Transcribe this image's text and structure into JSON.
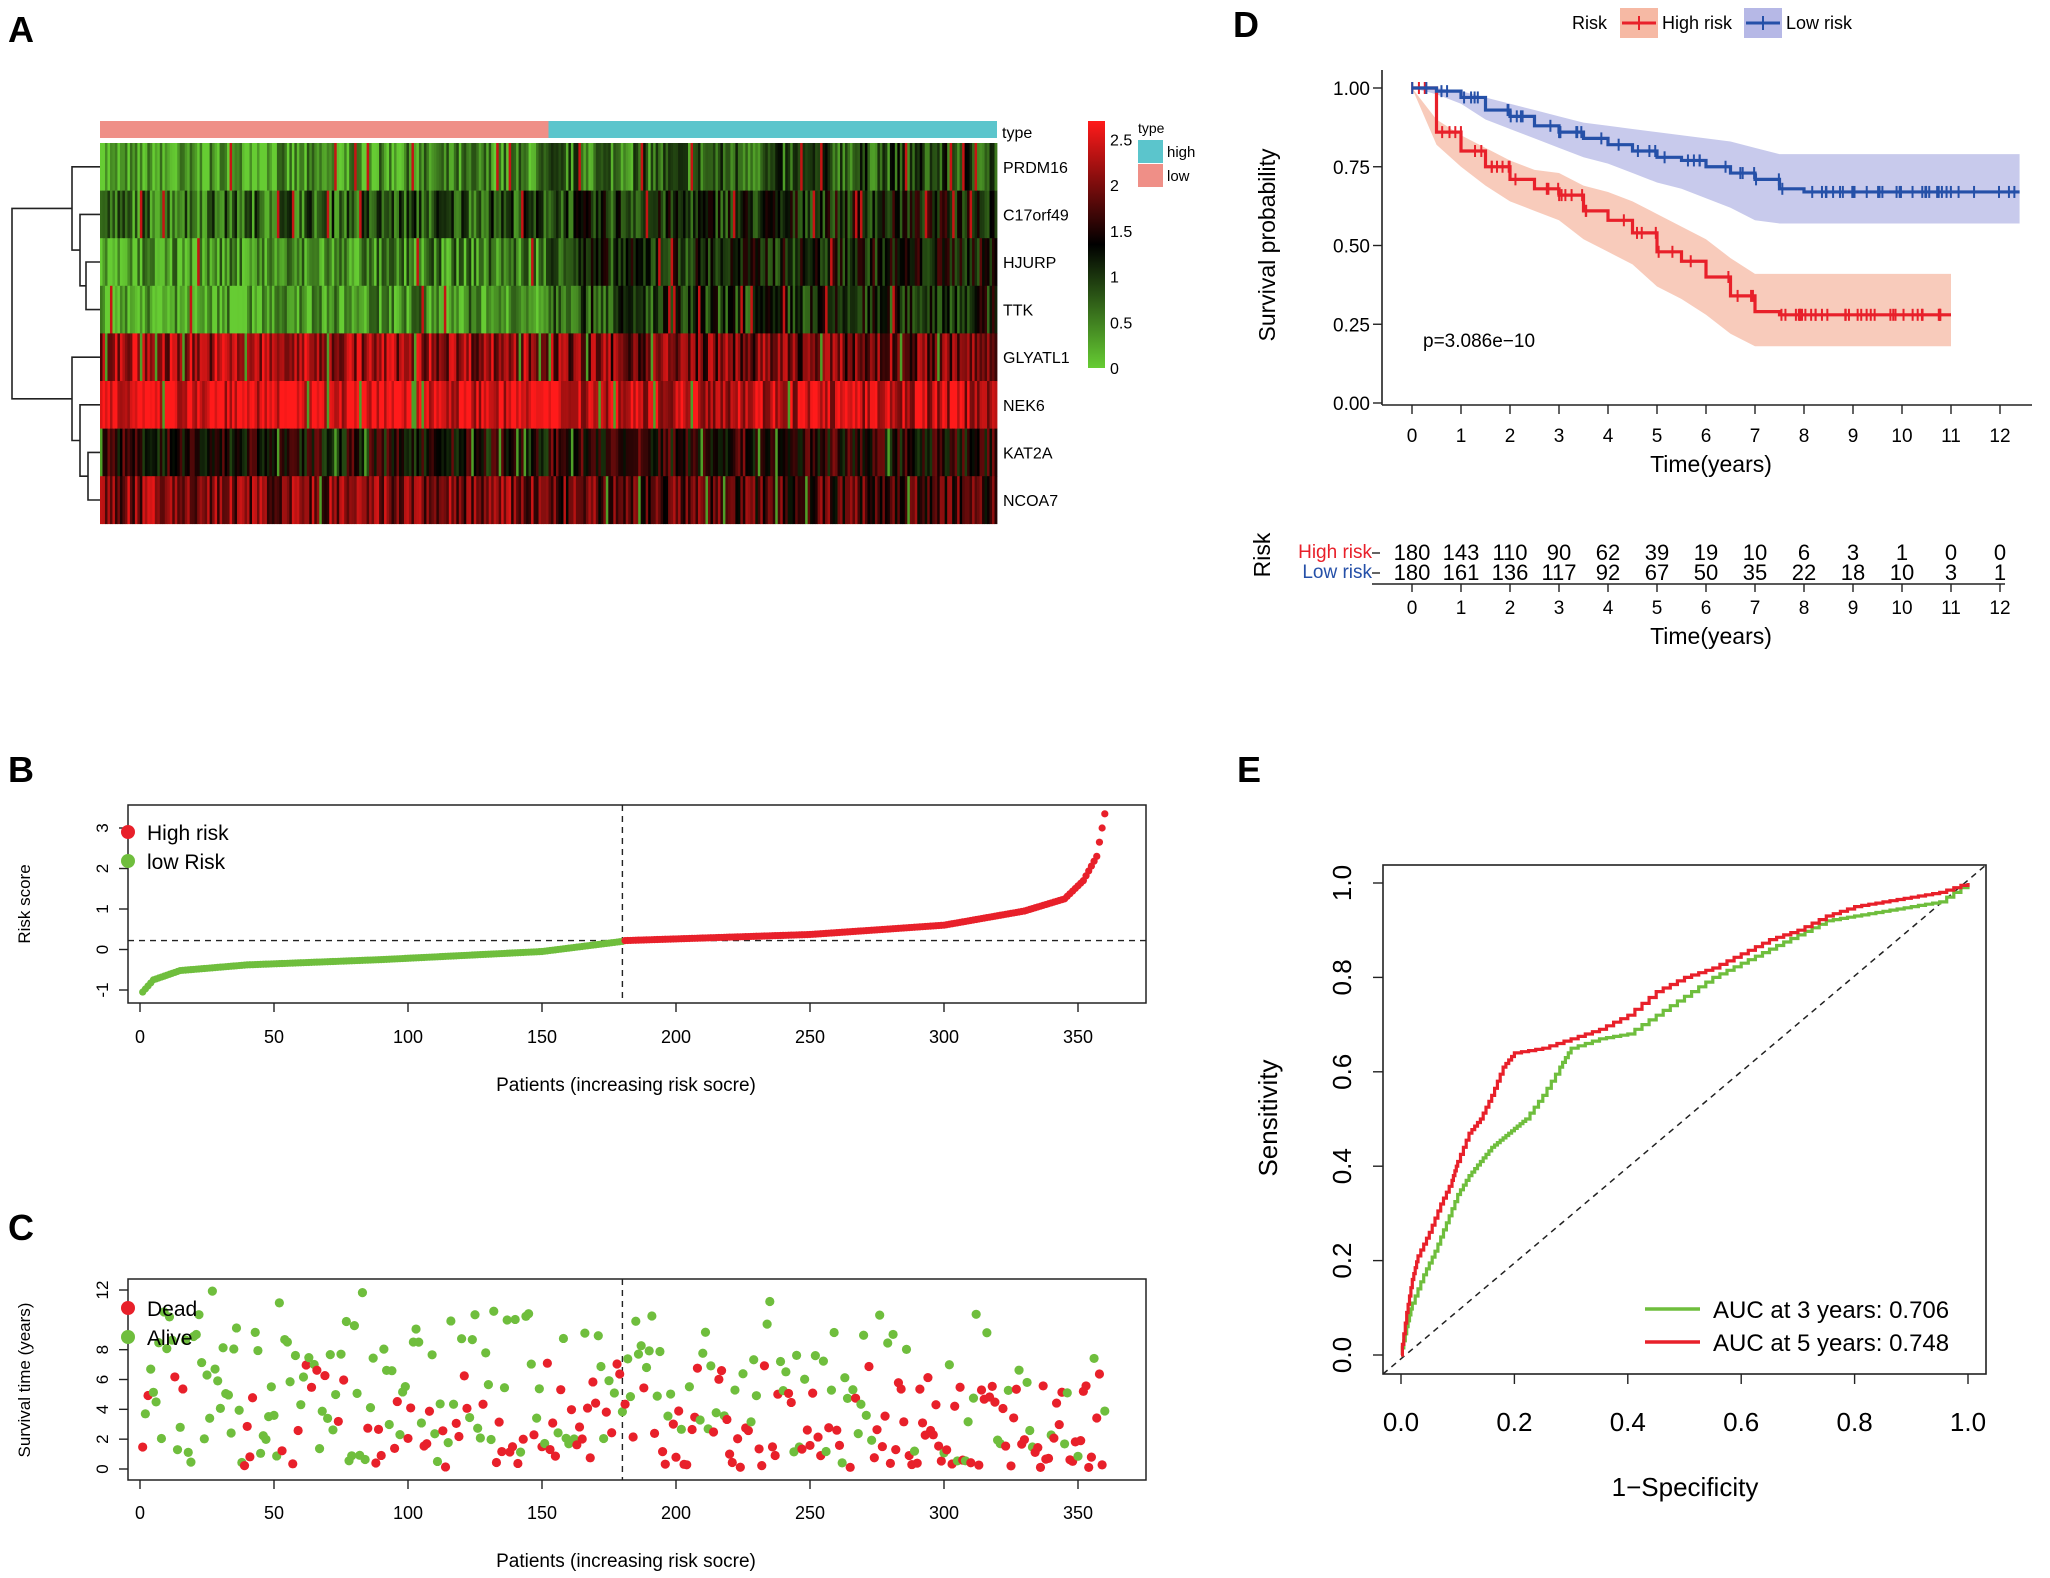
{
  "colors": {
    "high": "#e8202a",
    "low": "#6fbe3d",
    "km_high": "#e8202a",
    "km_low": "#2550a8",
    "km_high_band": "#f6b9a4",
    "km_low_band": "#b6b8e6",
    "heat_high": "#ff1a1a",
    "heat_mid": "#000000",
    "heat_low": "#66cc33",
    "type_high": "#5bc5cc",
    "type_low": "#ef8f87",
    "auc3": "#6fbe3d",
    "auc5": "#e8202a"
  },
  "panels": {
    "A": "A",
    "B": "B",
    "C": "C",
    "D": "D",
    "E": "E"
  },
  "chart_data": [
    {
      "panel": "A",
      "type": "heatmap",
      "rows": [
        "PRDM16",
        "C17orf49",
        "HJURP",
        "TTK",
        "GLYATL1",
        "NEK6",
        "KAT2A",
        "NCOA7"
      ],
      "annotation_label": "type",
      "legend_title": "type",
      "legend_items": [
        "high",
        "low"
      ],
      "groups": [
        {
          "name": "low",
          "n": 180
        },
        {
          "name": "high",
          "n": 180
        }
      ],
      "color_scale": {
        "min": 0,
        "max": 2.7,
        "ticks": [
          "2.5",
          "2",
          "1.5",
          "1",
          "0.5",
          "0"
        ]
      },
      "row_means_low": [
        0.45,
        0.9,
        0.55,
        0.45,
        2.15,
        2.55,
        1.35,
        1.95
      ],
      "row_means_high": [
        0.6,
        0.95,
        1.0,
        0.85,
        2.0,
        2.45,
        1.55,
        1.8
      ]
    },
    {
      "panel": "B",
      "type": "scatter",
      "xlabel": "Patients (increasing risk socre)",
      "ylabel": "Risk score",
      "xticks": [
        "0",
        "50",
        "100",
        "150",
        "200",
        "250",
        "300",
        "350"
      ],
      "yticks": [
        "-1",
        "0",
        "1",
        "2",
        "3"
      ],
      "xlim": [
        0,
        376
      ],
      "ylim": [
        -1.2,
        3.5
      ],
      "cutoff_index": 180,
      "cutoff_value": 0.22,
      "legend": [
        "High risk",
        "low Risk"
      ],
      "series": [
        {
          "name": "low Risk",
          "n": 180,
          "curve": [
            [
              1,
              -1.05
            ],
            [
              5,
              -0.75
            ],
            [
              15,
              -0.52
            ],
            [
              40,
              -0.38
            ],
            [
              90,
              -0.25
            ],
            [
              150,
              -0.05
            ],
            [
              180,
              0.2
            ]
          ]
        },
        {
          "name": "High risk",
          "n": 180,
          "curve": [
            [
              181,
              0.22
            ],
            [
              250,
              0.37
            ],
            [
              300,
              0.6
            ],
            [
              330,
              0.95
            ],
            [
              345,
              1.25
            ],
            [
              352,
              1.7
            ],
            [
              357,
              2.3
            ],
            [
              360,
              3.35
            ]
          ]
        }
      ]
    },
    {
      "panel": "C",
      "type": "scatter",
      "xlabel": "Patients (increasing risk socre)",
      "ylabel": "Survival time (years)",
      "xticks": [
        "0",
        "50",
        "100",
        "150",
        "200",
        "250",
        "300",
        "350"
      ],
      "yticks": [
        "0",
        "2",
        "4",
        "6",
        "8",
        "12"
      ],
      "xlim": [
        0,
        376
      ],
      "ylim": [
        0,
        12.7
      ],
      "cutoff_index": 180,
      "legend": [
        "Dead",
        "Alive"
      ],
      "series": [
        {
          "name": "Dead"
        },
        {
          "name": "Alive"
        }
      ]
    },
    {
      "panel": "D",
      "type": "line",
      "xlabel": "Time(years)",
      "ylabel": "Survival probability",
      "xticks": [
        "0",
        "1",
        "2",
        "3",
        "4",
        "5",
        "6",
        "7",
        "8",
        "9",
        "10",
        "11",
        "12"
      ],
      "yticks": [
        "0.00",
        "0.25",
        "0.50",
        "0.75",
        "1.00"
      ],
      "xlim": [
        0,
        12.5
      ],
      "ylim": [
        0,
        1
      ],
      "legend_title": "Risk",
      "legend": [
        "High risk",
        "Low risk"
      ],
      "pvalue": "p=3.086e−10",
      "series": [
        {
          "name": "High risk",
          "x": [
            0,
            0.5,
            1,
            1.5,
            2,
            2.5,
            3,
            3.5,
            4,
            4.5,
            5,
            5.5,
            6,
            6.5,
            7,
            7.5,
            8,
            9,
            10,
            11
          ],
          "y": [
            1.0,
            0.86,
            0.8,
            0.75,
            0.71,
            0.68,
            0.66,
            0.61,
            0.58,
            0.54,
            0.48,
            0.45,
            0.4,
            0.34,
            0.29,
            0.28,
            0.28,
            0.28,
            0.28,
            0.28
          ],
          "lower": [
            1.0,
            0.82,
            0.75,
            0.69,
            0.64,
            0.61,
            0.58,
            0.52,
            0.48,
            0.44,
            0.37,
            0.33,
            0.28,
            0.22,
            0.18,
            0.18,
            0.18,
            0.18,
            0.18,
            0.18
          ],
          "upper": [
            1.0,
            0.9,
            0.85,
            0.81,
            0.77,
            0.74,
            0.73,
            0.69,
            0.67,
            0.64,
            0.6,
            0.56,
            0.52,
            0.46,
            0.41,
            0.41,
            0.41,
            0.41,
            0.41,
            0.41
          ]
        },
        {
          "name": "Low risk",
          "x": [
            0,
            0.5,
            1,
            1.5,
            2,
            2.5,
            3,
            3.5,
            4,
            4.5,
            5,
            5.5,
            6,
            6.5,
            7,
            7.5,
            8,
            9,
            10,
            11,
            12,
            12.4
          ],
          "y": [
            1.0,
            0.99,
            0.97,
            0.93,
            0.91,
            0.88,
            0.86,
            0.84,
            0.82,
            0.8,
            0.78,
            0.77,
            0.75,
            0.73,
            0.71,
            0.68,
            0.67,
            0.67,
            0.67,
            0.67,
            0.67,
            0.67
          ],
          "lower": [
            1.0,
            0.98,
            0.95,
            0.9,
            0.87,
            0.84,
            0.81,
            0.78,
            0.76,
            0.73,
            0.7,
            0.68,
            0.65,
            0.62,
            0.58,
            0.57,
            0.57,
            0.57,
            0.57,
            0.57,
            0.57,
            0.57
          ],
          "upper": [
            1.0,
            1.0,
            0.99,
            0.97,
            0.95,
            0.93,
            0.91,
            0.89,
            0.88,
            0.87,
            0.86,
            0.85,
            0.84,
            0.83,
            0.81,
            0.79,
            0.79,
            0.79,
            0.79,
            0.79,
            0.79,
            0.79
          ]
        }
      ],
      "risk_table": {
        "title": "Risk",
        "xlabel": "Time(years)",
        "rows": [
          {
            "name": "High risk",
            "values": [
              "180",
              "143",
              "110",
              "90",
              "62",
              "39",
              "19",
              "10",
              "6",
              "3",
              "1",
              "0",
              "0"
            ]
          },
          {
            "name": "Low risk",
            "values": [
              "180",
              "161",
              "136",
              "117",
              "92",
              "67",
              "50",
              "35",
              "22",
              "18",
              "10",
              "3",
              "1"
            ]
          }
        ]
      }
    },
    {
      "panel": "E",
      "type": "line",
      "xlabel": "1−Specificity",
      "ylabel": "Sensitivity",
      "xticks": [
        "0.0",
        "0.2",
        "0.4",
        "0.6",
        "0.8",
        "1.0"
      ],
      "yticks": [
        "0.0",
        "0.2",
        "0.4",
        "0.6",
        "0.8",
        "1.0"
      ],
      "xlim": [
        0,
        1
      ],
      "ylim": [
        0,
        1
      ],
      "series": [
        {
          "name": "AUC at 3 years: 0.706",
          "x": [
            0,
            0.01,
            0.02,
            0.04,
            0.06,
            0.08,
            0.1,
            0.12,
            0.14,
            0.16,
            0.18,
            0.2,
            0.22,
            0.25,
            0.28,
            0.3,
            0.35,
            0.4,
            0.45,
            0.5,
            0.55,
            0.6,
            0.65,
            0.7,
            0.75,
            0.8,
            0.85,
            0.9,
            0.95,
            1.0
          ],
          "y": [
            0,
            0.06,
            0.11,
            0.17,
            0.22,
            0.28,
            0.34,
            0.38,
            0.41,
            0.44,
            0.46,
            0.48,
            0.5,
            0.55,
            0.61,
            0.65,
            0.67,
            0.68,
            0.72,
            0.76,
            0.8,
            0.83,
            0.86,
            0.89,
            0.92,
            0.93,
            0.94,
            0.95,
            0.96,
            1.0
          ]
        },
        {
          "name": "AUC at 5 years: 0.748",
          "x": [
            0,
            0.01,
            0.02,
            0.03,
            0.05,
            0.07,
            0.09,
            0.1,
            0.12,
            0.14,
            0.16,
            0.18,
            0.2,
            0.25,
            0.3,
            0.35,
            0.4,
            0.45,
            0.5,
            0.55,
            0.6,
            0.65,
            0.7,
            0.75,
            0.8,
            0.85,
            0.9,
            0.95,
            1.0
          ],
          "y": [
            0,
            0.09,
            0.16,
            0.21,
            0.26,
            0.32,
            0.37,
            0.41,
            0.47,
            0.5,
            0.55,
            0.61,
            0.64,
            0.65,
            0.67,
            0.69,
            0.72,
            0.77,
            0.8,
            0.82,
            0.85,
            0.88,
            0.9,
            0.93,
            0.95,
            0.96,
            0.97,
            0.98,
            1.0
          ]
        }
      ]
    }
  ]
}
